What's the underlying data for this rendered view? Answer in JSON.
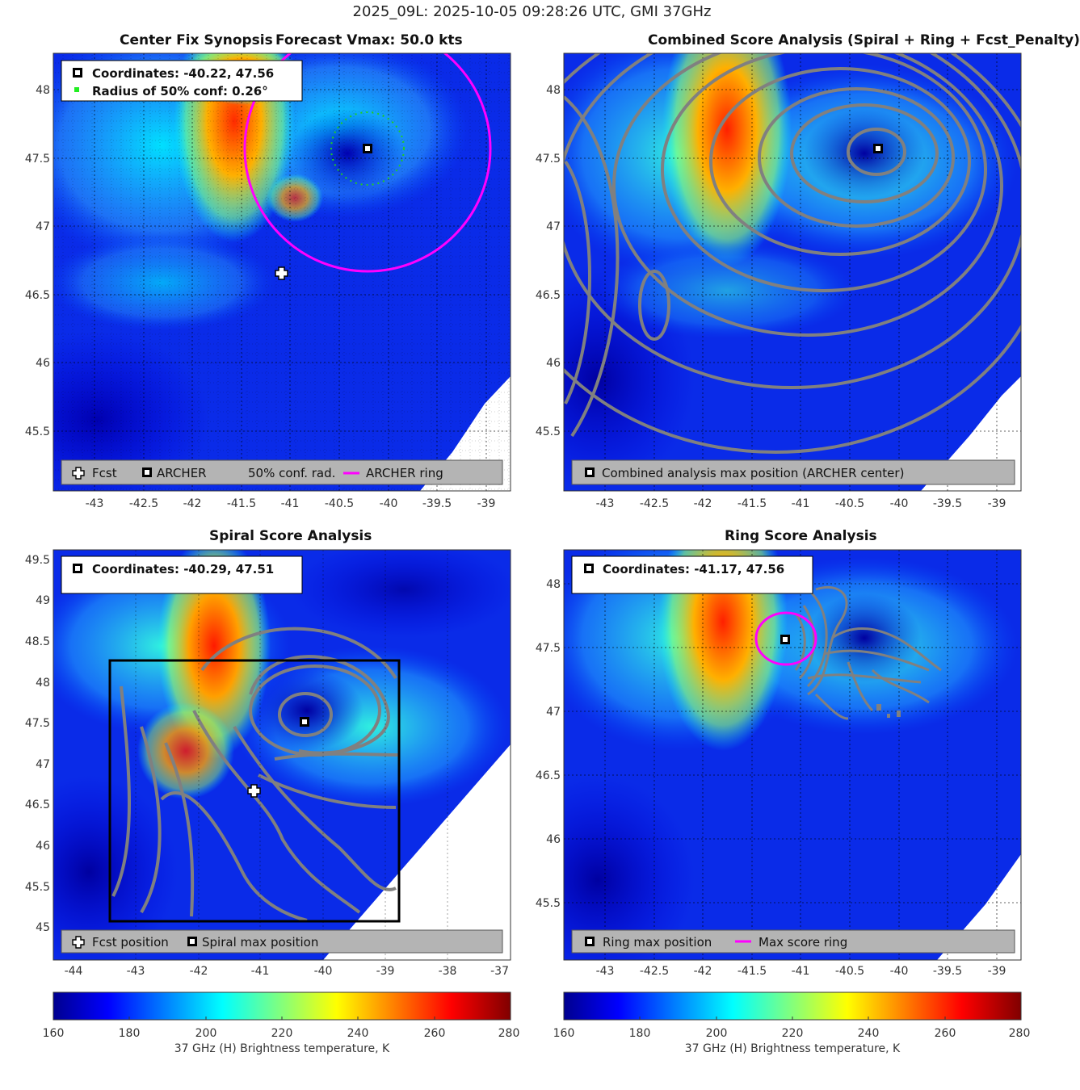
{
  "figure_title": "2025_09L: 2025-10-05 09:28:26 UTC, GMI 37GHz",
  "colormap": {
    "name": "jet",
    "stops": [
      "#00008f",
      "#0000ff",
      "#00ffff",
      "#ffff00",
      "#ff0000",
      "#800000"
    ]
  },
  "colorbar": {
    "ticks": [
      "160",
      "180",
      "200",
      "220",
      "240",
      "260",
      "280"
    ],
    "range": [
      160,
      280
    ],
    "label": "37 GHz (H) Brightness temperature, K"
  },
  "panels": {
    "synopsis": {
      "title_left": "Center Fix Synopsis",
      "title_right": "Forecast Vmax: 50.0 kts",
      "info_line1": "Coordinates: -40.22, 47.56",
      "info_line2": "Radius of 50% conf: 0.26°",
      "legend": [
        "Fcst",
        "ARCHER",
        "50% conf. rad.",
        "ARCHER ring"
      ],
      "xticks": [
        "-43",
        "-42.5",
        "-42",
        "-41.5",
        "-41",
        "-40.5",
        "-40",
        "-39.5",
        "-39"
      ],
      "yticks": [
        "48",
        "47.5",
        "47",
        "46.5",
        "46",
        "45.5"
      ]
    },
    "combined": {
      "title": "Combined Score Analysis (Spiral + Ring + Fcst_Penalty)",
      "legend": [
        "Combined analysis max position (ARCHER center)"
      ],
      "xticks": [
        "-43",
        "-42.5",
        "-42",
        "-41.5",
        "-41",
        "-40.5",
        "-40",
        "-39.5",
        "-39"
      ],
      "yticks": [
        "48",
        "47.5",
        "47",
        "46.5",
        "46",
        "45.5"
      ]
    },
    "spiral": {
      "title": "Spiral Score Analysis",
      "info_line1": "Coordinates: -40.29, 47.51",
      "legend": [
        "Fcst position",
        "Spiral max position"
      ],
      "xticks": [
        "-44",
        "-43",
        "-42",
        "-41",
        "-40",
        "-39",
        "-38",
        "-37"
      ],
      "yticks": [
        "49.5",
        "49",
        "48.5",
        "48",
        "47.5",
        "47",
        "46.5",
        "46",
        "45.5",
        "45"
      ]
    },
    "ring": {
      "title": "Ring Score Analysis",
      "info_line1": "Coordinates: -41.17, 47.56",
      "legend": [
        "Ring max position",
        "Max score ring"
      ],
      "xticks": [
        "-43",
        "-42.5",
        "-42",
        "-41.5",
        "-41",
        "-40.5",
        "-40",
        "-39.5",
        "-39"
      ],
      "yticks": [
        "48",
        "47.5",
        "47",
        "46.5",
        "46",
        "45.5"
      ]
    }
  },
  "chart_data": [
    {
      "type": "heatmap",
      "panel": "Center Fix Synopsis",
      "xlim": [
        -43.45,
        -38.75
      ],
      "ylim": [
        45.05,
        48.25
      ],
      "archer_center": [
        -40.22,
        47.56
      ],
      "forecast_position": [
        -41.1,
        46.67
      ],
      "conf_radius_deg": 0.26,
      "archer_ring_radius_deg": 1.25,
      "value_range": [
        160,
        280
      ]
    },
    {
      "type": "heatmap",
      "panel": "Combined Score Analysis (Spiral + Ring + Fcst_Penalty)",
      "xlim": [
        -43.45,
        -38.75
      ],
      "ylim": [
        45.05,
        48.25
      ],
      "max_position": [
        -40.22,
        47.56
      ],
      "value_range": [
        160,
        280
      ]
    },
    {
      "type": "heatmap",
      "panel": "Spiral Score Analysis",
      "xlim": [
        -44.3,
        -36.95
      ],
      "ylim": [
        44.6,
        49.6
      ],
      "max_position": [
        -40.29,
        47.51
      ],
      "forecast_position": [
        -41.1,
        46.67
      ],
      "search_box": {
        "x": [
          -43.4,
          -38.8
        ],
        "y": [
          45.06,
          48.29
        ]
      },
      "value_range": [
        160,
        280
      ]
    },
    {
      "type": "heatmap",
      "panel": "Ring Score Analysis",
      "xlim": [
        -43.45,
        -38.75
      ],
      "ylim": [
        45.05,
        48.25
      ],
      "max_position": [
        -41.17,
        47.56
      ],
      "value_range": [
        160,
        280
      ]
    }
  ]
}
